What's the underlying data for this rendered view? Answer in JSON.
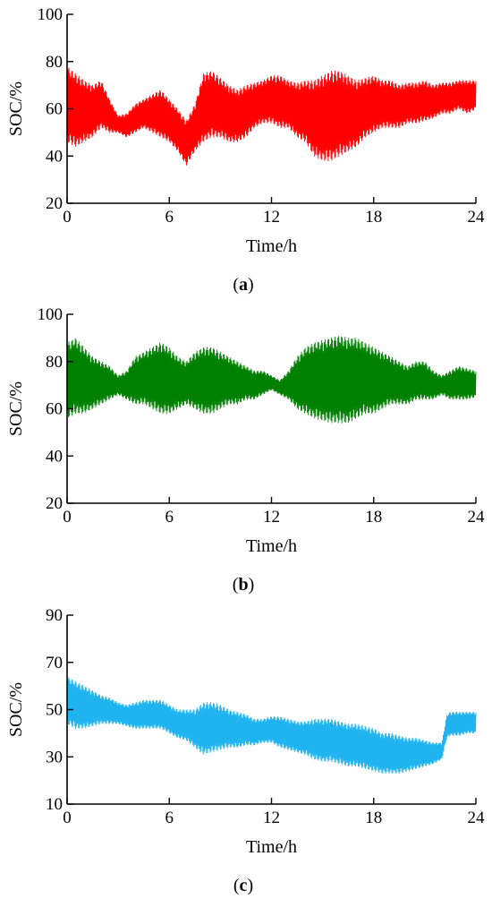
{
  "chart_data": [
    {
      "type": "line",
      "panel_label": "a",
      "xlabel": "Time/h",
      "ylabel": "SOC/%",
      "xlim": [
        0,
        24
      ],
      "ylim": [
        20,
        100
      ],
      "xticks": [
        "0",
        "6",
        "12",
        "18",
        "24"
      ],
      "yticks": [
        "20",
        "40",
        "60",
        "80",
        "100"
      ],
      "color": "#ff0000",
      "series": [
        {
          "x": [
            0,
            0.5,
            1,
            1.5,
            2,
            2.5,
            3,
            3.5,
            4,
            4.5,
            5,
            5.5,
            6,
            6.5,
            7,
            7.5,
            8,
            8.5,
            9,
            9.5,
            10,
            10.5,
            11,
            11.5,
            12,
            12.5,
            13,
            13.5,
            14,
            14.5,
            15,
            15.5,
            16,
            16.5,
            17,
            17.5,
            18,
            18.5,
            19,
            19.5,
            20,
            20.5,
            21,
            21.5,
            22,
            22.5,
            23,
            23.5,
            24
          ],
          "upper": [
            78,
            75,
            72,
            70,
            72,
            64,
            57,
            58,
            62,
            64,
            66,
            68,
            64,
            60,
            55,
            62,
            75,
            76,
            73,
            70,
            68,
            70,
            71,
            72,
            74,
            74,
            72,
            71,
            72,
            72,
            74,
            76,
            76,
            74,
            72,
            73,
            74,
            72,
            72,
            70,
            71,
            71,
            72,
            70,
            71,
            71,
            72,
            72,
            72
          ],
          "lower": [
            46,
            44,
            46,
            48,
            52,
            50,
            50,
            48,
            50,
            52,
            50,
            48,
            46,
            42,
            36,
            42,
            46,
            48,
            48,
            46,
            46,
            48,
            52,
            54,
            54,
            52,
            52,
            48,
            46,
            40,
            38,
            38,
            40,
            42,
            44,
            48,
            50,
            52,
            52,
            52,
            54,
            54,
            55,
            56,
            58,
            58,
            60,
            58,
            60
          ]
        }
      ]
    },
    {
      "type": "line",
      "panel_label": "b",
      "xlabel": "Time/h",
      "ylabel": "SOC/%",
      "xlim": [
        0,
        24
      ],
      "ylim": [
        20,
        100
      ],
      "xticks": [
        "0",
        "6",
        "12",
        "18",
        "24"
      ],
      "yticks": [
        "20",
        "40",
        "60",
        "80",
        "100"
      ],
      "color": "#008000",
      "series": [
        {
          "x": [
            0,
            0.5,
            1,
            1.5,
            2,
            2.5,
            3,
            3.5,
            4,
            4.5,
            5,
            5.5,
            6,
            6.5,
            7,
            7.5,
            8,
            8.5,
            9,
            9.5,
            10,
            10.5,
            11,
            11.5,
            12,
            12.5,
            13,
            13.5,
            14,
            14.5,
            15,
            15.5,
            16,
            16.5,
            17,
            17.5,
            18,
            18.5,
            19,
            19.5,
            20,
            20.5,
            21,
            21.5,
            22,
            22.5,
            23,
            23.5,
            24
          ],
          "upper": [
            88,
            90,
            86,
            82,
            80,
            78,
            74,
            76,
            82,
            84,
            86,
            88,
            86,
            82,
            80,
            84,
            86,
            86,
            84,
            82,
            80,
            78,
            76,
            76,
            74,
            72,
            76,
            82,
            86,
            88,
            89,
            90,
            91,
            90,
            90,
            88,
            86,
            84,
            82,
            80,
            78,
            80,
            80,
            76,
            74,
            76,
            78,
            77,
            76
          ],
          "lower": [
            56,
            58,
            58,
            60,
            62,
            64,
            66,
            64,
            62,
            62,
            60,
            58,
            58,
            60,
            62,
            60,
            58,
            58,
            60,
            62,
            62,
            64,
            64,
            66,
            68,
            66,
            64,
            60,
            58,
            56,
            55,
            54,
            54,
            54,
            56,
            58,
            58,
            60,
            62,
            62,
            62,
            64,
            64,
            64,
            66,
            64,
            64,
            64,
            65
          ]
        }
      ]
    },
    {
      "type": "line",
      "panel_label": "c",
      "xlabel": "Time/h",
      "ylabel": "SOC/%",
      "xlim": [
        0,
        24
      ],
      "ylim": [
        10,
        90
      ],
      "xticks": [
        "0",
        "6",
        "12",
        "18",
        "24"
      ],
      "yticks": [
        "10",
        "30",
        "50",
        "70",
        "90"
      ],
      "color": "#1fb4f0",
      "series": [
        {
          "x": [
            0,
            0.5,
            1,
            1.5,
            2,
            2.5,
            3,
            3.5,
            4,
            4.5,
            5,
            5.5,
            6,
            6.5,
            7,
            7.5,
            8,
            8.5,
            9,
            9.5,
            10,
            10.5,
            11,
            11.5,
            12,
            12.5,
            13,
            13.5,
            14,
            14.5,
            15,
            15.5,
            16,
            16.5,
            17,
            17.5,
            18,
            18.5,
            19,
            19.5,
            20,
            20.5,
            21,
            21.5,
            22,
            22.3,
            22.5,
            23,
            23.5,
            24
          ],
          "upper": [
            64,
            62,
            60,
            58,
            56,
            55,
            53,
            52,
            53,
            54,
            54,
            54,
            52,
            50,
            50,
            50,
            53,
            53,
            52,
            50,
            49,
            48,
            46,
            46,
            47,
            47,
            46,
            45,
            45,
            46,
            46,
            46,
            45,
            44,
            44,
            43,
            42,
            40,
            40,
            39,
            38,
            38,
            37,
            36,
            36,
            48,
            49,
            49,
            49,
            49
          ],
          "lower": [
            44,
            42,
            42,
            43,
            44,
            44,
            44,
            43,
            42,
            42,
            42,
            42,
            40,
            38,
            37,
            34,
            31,
            32,
            33,
            34,
            34,
            35,
            35,
            36,
            36,
            34,
            33,
            32,
            31,
            29,
            28,
            28,
            27,
            26,
            26,
            25,
            24,
            23,
            23,
            23,
            24,
            25,
            26,
            27,
            29,
            38,
            39,
            39,
            40,
            40
          ]
        }
      ]
    }
  ]
}
